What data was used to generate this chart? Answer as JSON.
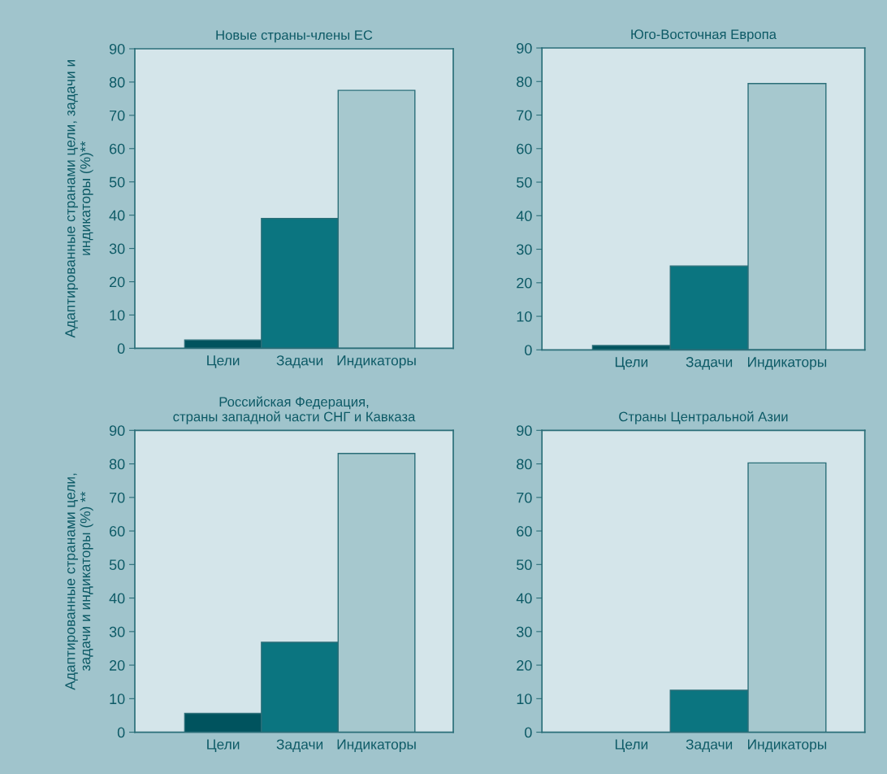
{
  "chart_data": [
    {
      "type": "bar",
      "title": "Новые страны-члены ЕС",
      "ylabel": "Адаптированные странами цели, задачи и\nиндикаторы (%)**",
      "categories": [
        "Цели",
        "Задачи",
        "Индикаторы"
      ],
      "values": [
        2.5,
        39,
        77.5
      ],
      "colors": [
        "#00535e",
        "#0b7580",
        "#a6c8ce"
      ],
      "ylim": [
        0,
        90
      ],
      "yticks": [
        0,
        10,
        20,
        30,
        40,
        50,
        60,
        70,
        80,
        90
      ],
      "grid": false,
      "legend": false
    },
    {
      "type": "bar",
      "title": "Юго-Восточная Европа",
      "categories": [
        "Цели",
        "Задачи",
        "Индикаторы"
      ],
      "values": [
        1.3,
        25,
        79.4
      ],
      "colors": [
        "#00535e",
        "#0b7580",
        "#a6c8ce"
      ],
      "ylim": [
        0,
        90
      ],
      "yticks": [
        0,
        10,
        20,
        30,
        40,
        50,
        60,
        70,
        80,
        90
      ],
      "grid": false,
      "legend": false
    },
    {
      "type": "bar",
      "title": "Российская Федерация,\nстраны западной части СНГ и Кавказа",
      "ylabel": "Адаптированные странами цели,\nзадачи и индикаторы (%) **",
      "categories": [
        "Цели",
        "Задачи",
        "Индикаторы"
      ],
      "values": [
        5.6,
        26.8,
        83.1
      ],
      "colors": [
        "#00535e",
        "#0b7580",
        "#a6c8ce"
      ],
      "ylim": [
        0,
        90
      ],
      "yticks": [
        0,
        10,
        20,
        30,
        40,
        50,
        60,
        70,
        80,
        90
      ],
      "grid": false,
      "legend": false
    },
    {
      "type": "bar",
      "title": "Страны Центральной Азии",
      "categories": [
        "Цели",
        "Задачи",
        "Индикаторы"
      ],
      "values": [
        0,
        12.5,
        80.3
      ],
      "colors": [
        "#00535e",
        "#0b7580",
        "#a6c8ce"
      ],
      "ylim": [
        0,
        90
      ],
      "yticks": [
        0,
        10,
        20,
        30,
        40,
        50,
        60,
        70,
        80,
        90
      ],
      "grid": false,
      "legend": false
    }
  ]
}
